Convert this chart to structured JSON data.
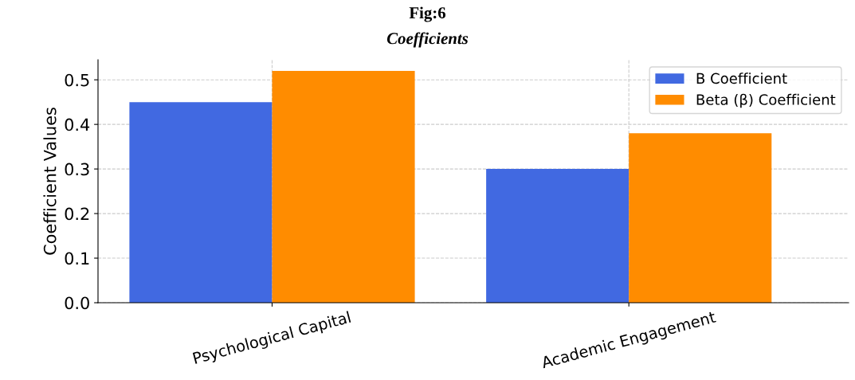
{
  "chart_data": {
    "type": "bar",
    "title": "Fig:6",
    "subtitle": "Coefficients",
    "ylabel": "Coefficient Values",
    "categories": [
      "Psychological Capital",
      "Academic Engagement"
    ],
    "series": [
      {
        "name": "B Coefficient",
        "color": "#4169e1",
        "values": [
          0.45,
          0.3
        ]
      },
      {
        "name": "Beta (β) Coefficient",
        "color": "#ff8c00",
        "values": [
          0.52,
          0.38
        ]
      }
    ],
    "ylim": [
      0,
      0.545
    ],
    "yticks": [
      {
        "value": 0,
        "label": "0.0"
      },
      0.1,
      0.2,
      0.3,
      0.4,
      0.5
    ],
    "grid": true,
    "legend": "top right"
  }
}
